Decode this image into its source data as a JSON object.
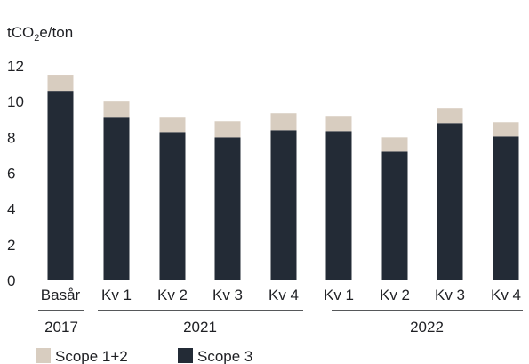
{
  "chart_data": {
    "type": "bar",
    "stacked": true,
    "ylabel": "tCO₂e/ton",
    "ylim": [
      0,
      12
    ],
    "yticks": [
      "0",
      "2",
      "4",
      "6",
      "8",
      "10",
      "12"
    ],
    "grid": false,
    "legend_position": "bottom-left",
    "categories": [
      "Basår",
      "Kv 1",
      "Kv 2",
      "Kv 3",
      "Kv 4",
      "Kv 1",
      "Kv 2",
      "Kv 3",
      "Kv 4"
    ],
    "groups": [
      {
        "label": "2017",
        "start": 0,
        "end": 0
      },
      {
        "label": "2021",
        "start": 1,
        "end": 4
      },
      {
        "label": "2022",
        "start": 5,
        "end": 8
      }
    ],
    "series": [
      {
        "name": "Scope 3",
        "color": "#232b36",
        "values": [
          10.6,
          9.1,
          8.3,
          8.0,
          8.4,
          8.35,
          7.2,
          8.8,
          8.05
        ]
      },
      {
        "name": "Scope 1+2",
        "color": "#d8cdc0",
        "values": [
          0.9,
          0.9,
          0.8,
          0.9,
          0.95,
          0.85,
          0.8,
          0.85,
          0.8
        ]
      }
    ]
  }
}
